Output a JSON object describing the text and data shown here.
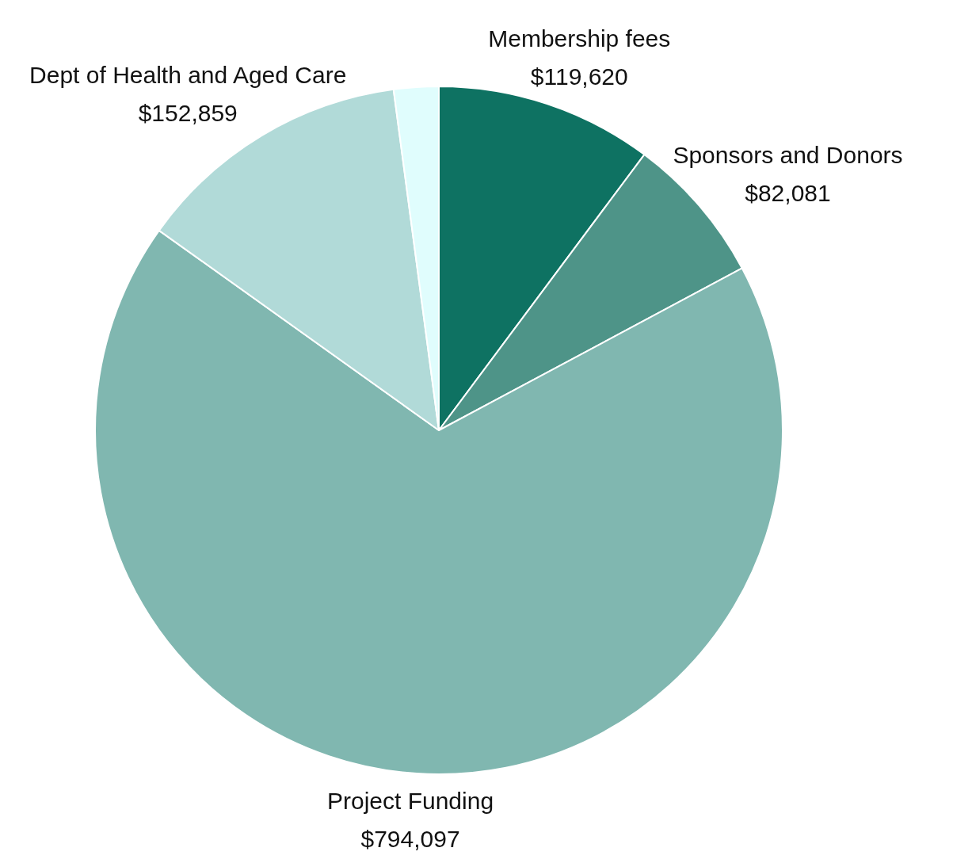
{
  "chart_data": {
    "type": "pie",
    "categories": [
      "Membership fees",
      "Sponsors and Donors",
      "Project Funding",
      "Dept of Health and Aged Care",
      null
    ],
    "values": [
      119620,
      82081,
      794097,
      152859,
      24700
    ],
    "value_labels": [
      "$119,620",
      "$82,081",
      "$794,097",
      "$152,859",
      null
    ],
    "colors": [
      "#0e7262",
      "#4e9488",
      "#80b7b0",
      "#b1dad8",
      "#e0fdfd"
    ],
    "legend": false
  }
}
